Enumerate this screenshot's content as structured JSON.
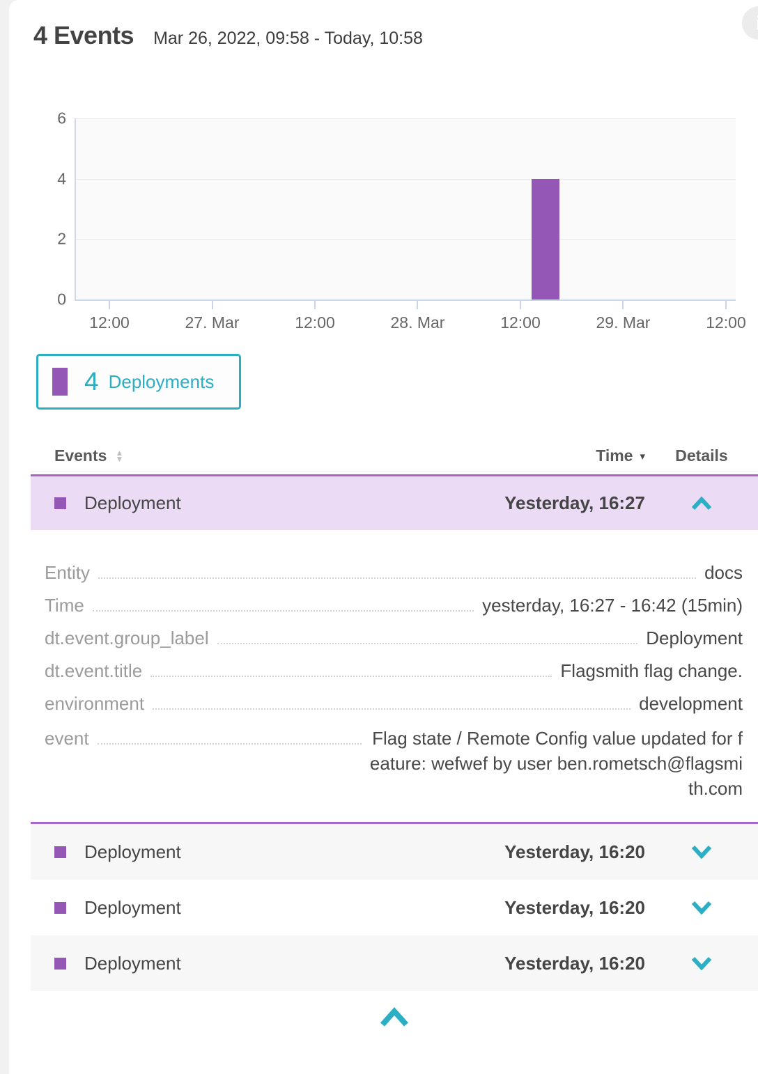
{
  "header": {
    "title": "4 Events",
    "timeframe": "Mar 26, 2022, 09:58 - Today, 10:58"
  },
  "icons": {
    "info_glyph": "i",
    "sort_up_glyph": "▲",
    "sort_down_glyph": "▼",
    "time_sort_glyph": "▾"
  },
  "chart_data": {
    "type": "bar",
    "title": "",
    "xlabel": "",
    "ylabel": "",
    "ylim": [
      0,
      6
    ],
    "yticks": [
      0,
      2,
      4,
      6
    ],
    "x_ticks": [
      "12:00",
      "27. Mar",
      "12:00",
      "28. Mar",
      "12:00",
      "29. Mar",
      "12:00"
    ],
    "x_axis_note": "time axis from Mar 26, 2022 09:58 to Today 10:58, tick every 12 h",
    "grid": true,
    "legend_position": "below-left",
    "series": [
      {
        "name": "Deployments",
        "color": "#9457b6",
        "bars": [
          {
            "x": "28. Mar afternoon (~13:30-16:45)",
            "value": 4,
            "x_frac": 0.6906,
            "width_frac": 0.0422
          }
        ]
      }
    ]
  },
  "legend": {
    "count": "4",
    "label": "Deployments",
    "swatch_color": "#9457b6",
    "border_color": "#2badc2"
  },
  "table": {
    "headers": {
      "events": "Events",
      "time": "Time",
      "details": "Details"
    },
    "rows": [
      {
        "type": "Deployment",
        "time": "Yesterday, 16:27",
        "state": "expanded"
      },
      {
        "type": "Deployment",
        "time": "Yesterday, 16:20",
        "state": "collapsed"
      },
      {
        "type": "Deployment",
        "time": "Yesterday, 16:20",
        "state": "collapsed"
      },
      {
        "type": "Deployment",
        "time": "Yesterday, 16:20",
        "state": "collapsed"
      }
    ]
  },
  "details": {
    "rows": [
      {
        "label": "Entity",
        "value": "docs"
      },
      {
        "label": "Time",
        "value": "yesterday, 16:27 - 16:42 (15min)"
      },
      {
        "label": "dt.event.group_label",
        "value": "Deployment"
      },
      {
        "label": "dt.event.title",
        "value": "Flagsmith flag change."
      },
      {
        "label": "environment",
        "value": "development"
      },
      {
        "label": "event",
        "value": "Flag state / Remote Config value updated for feature: wefwef by user ben.rometsch@flagsmith.com",
        "value_lines": [
          "Flag state / Remote Config value updated for f",
          "eature: wefwef by user ben.rometsch@flagsmi",
          "th.com"
        ]
      }
    ]
  },
  "colors": {
    "accent_teal": "#2badc2",
    "purple": "#9457b6",
    "expanded_row_bg": "#ebdbf4",
    "purple_border": "#a566c5",
    "alt_row_bg": "#f7f7f7"
  }
}
